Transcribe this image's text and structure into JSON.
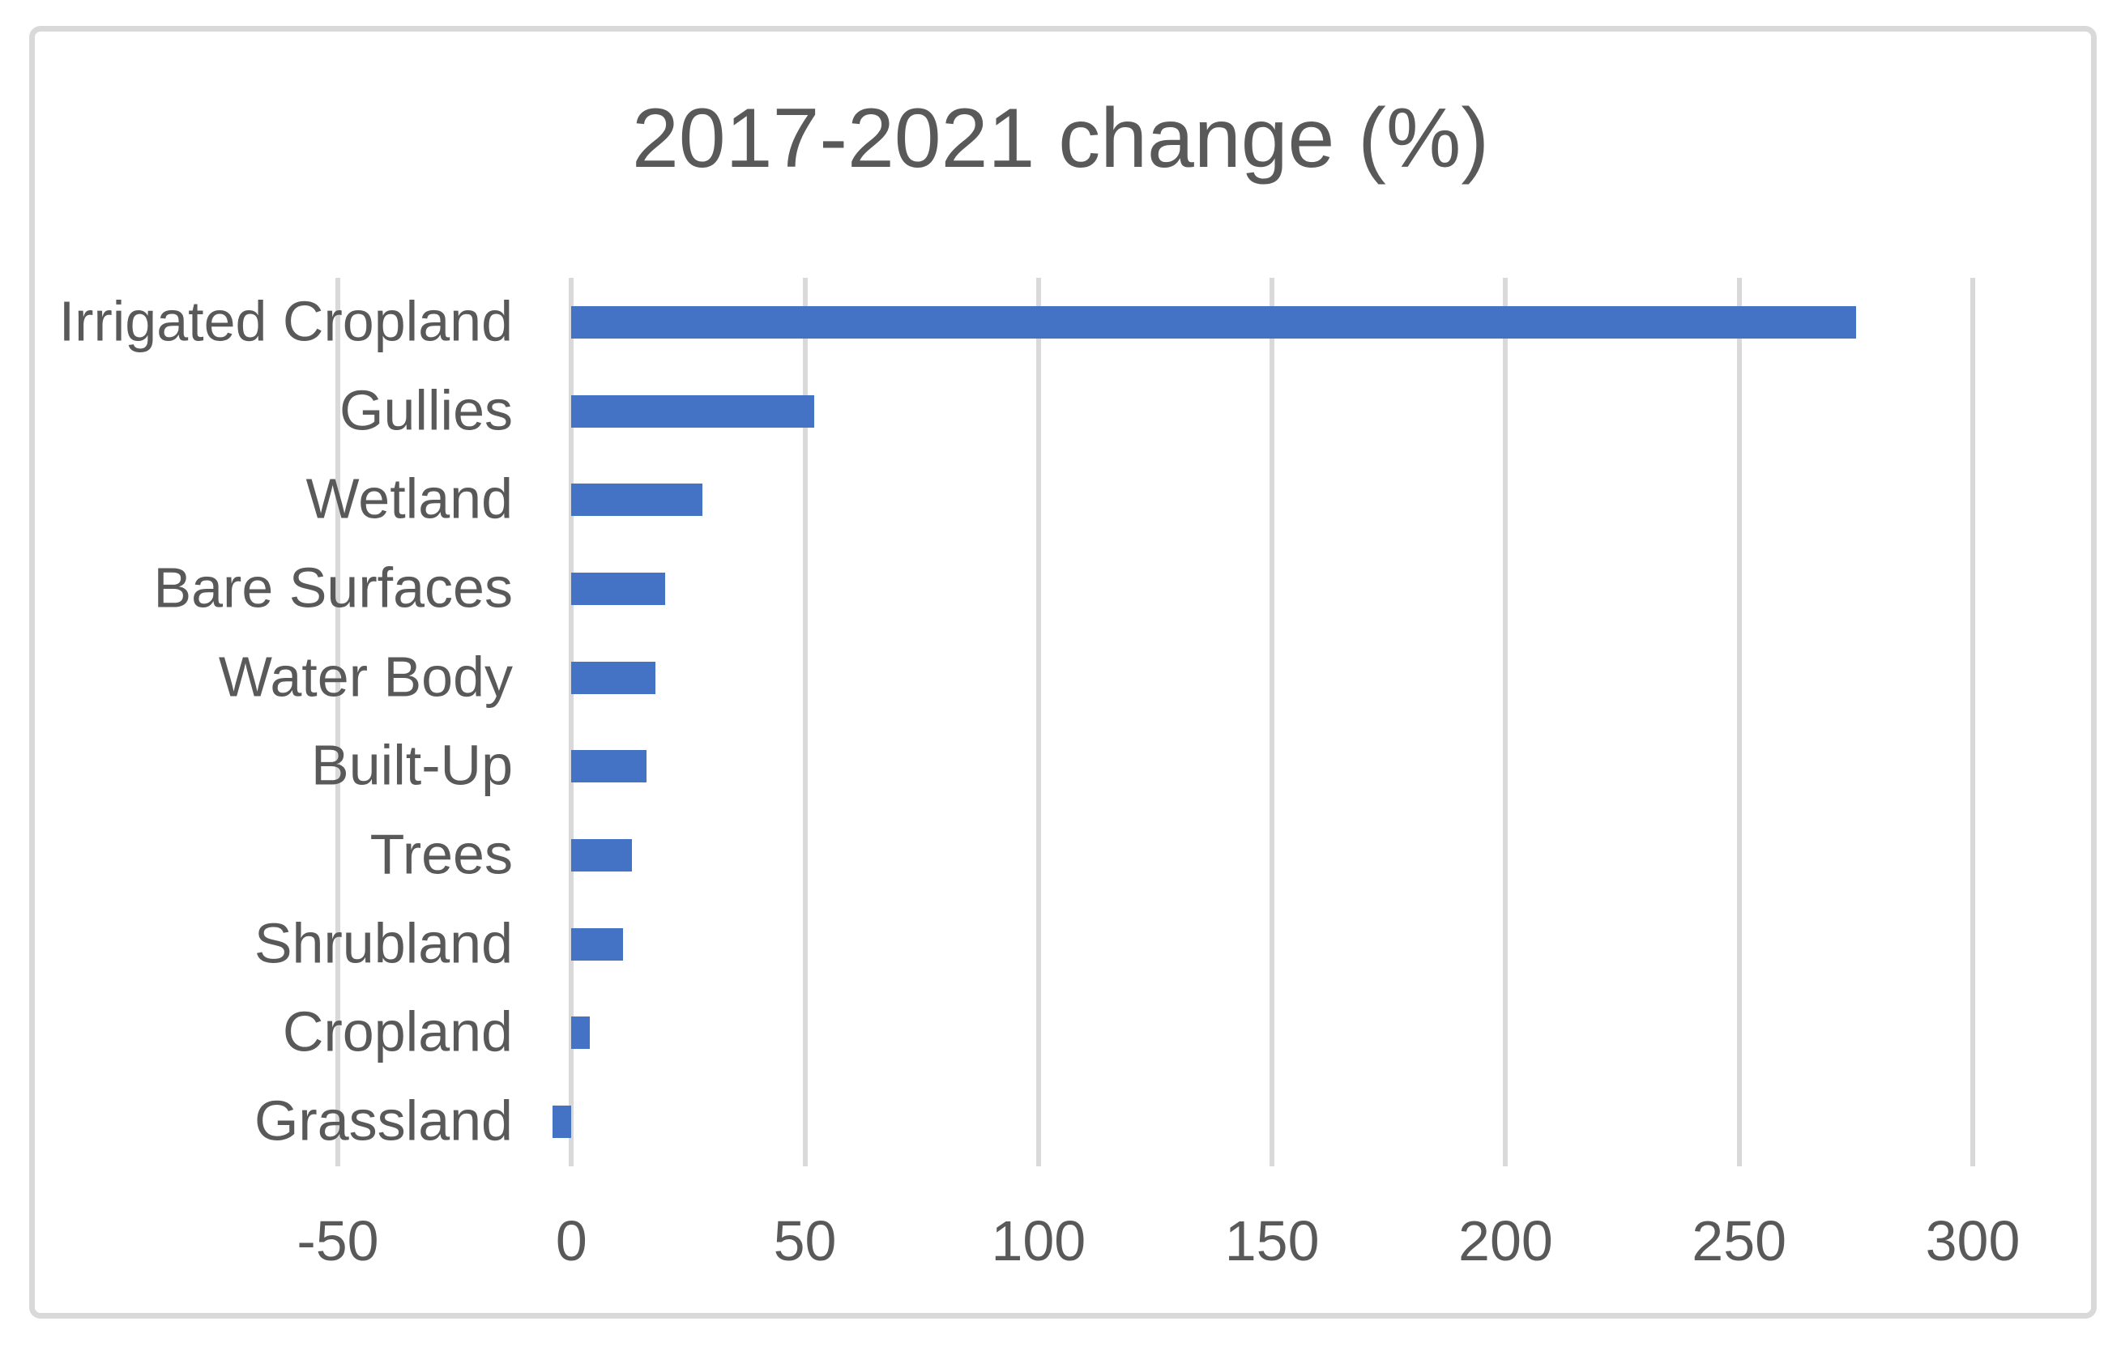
{
  "chart": {
    "title": "2017-2021 change (%)"
  },
  "chart_data": {
    "type": "bar",
    "orientation": "horizontal",
    "title": "2017-2021 change (%)",
    "categories": [
      "Irrigated Cropland",
      "Gullies",
      "Wetland",
      "Bare Surfaces",
      "Water Body",
      "Built-Up",
      "Trees",
      "Shrubland",
      "Cropland",
      "Grassland"
    ],
    "values": [
      275,
      52,
      28,
      20,
      18,
      16,
      13,
      11,
      4,
      -4
    ],
    "xlabel": "",
    "ylabel": "",
    "xlim": [
      -50,
      300
    ],
    "xticks": [
      -50,
      0,
      50,
      100,
      150,
      200,
      250,
      300
    ],
    "xtick_labels": [
      "-50",
      "0",
      "50",
      "100",
      "150",
      "200",
      "250",
      "300"
    ],
    "grid": true,
    "legend": false,
    "colors": {
      "bar": "#4472C4",
      "gridline": "#D9D9D9",
      "text": "#595959",
      "frame_border": "#D9D9D9",
      "background": "#FFFFFF"
    }
  }
}
